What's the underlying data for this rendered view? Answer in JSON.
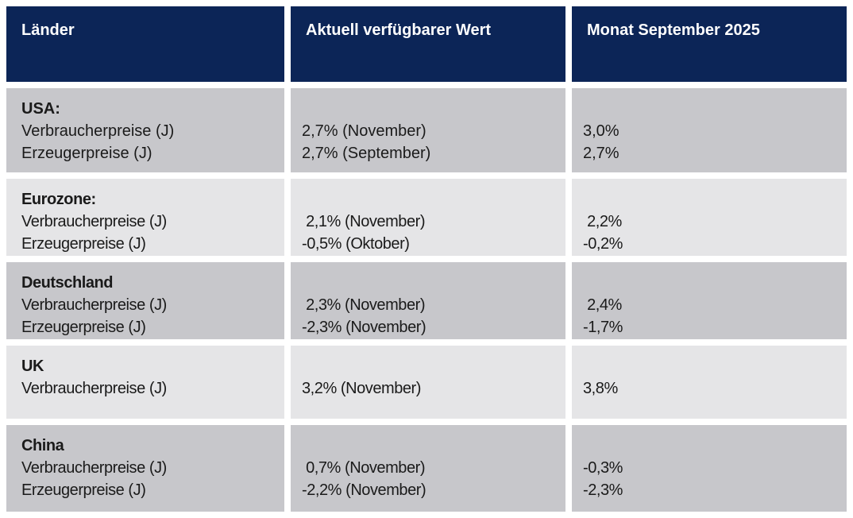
{
  "table": {
    "columns": [
      {
        "label": "Länder"
      },
      {
        "label": "Aktuell verfügbarer Wert"
      },
      {
        "label": "Monat September 2025"
      }
    ],
    "rows": [
      {
        "country": "USA:",
        "indicators": "Verbraucherpreise (J)\nErzeugerpreise (J)",
        "current_value": "2,7% (November)\n2,7% (September)",
        "september_value": "3,0%\n2,7%"
      },
      {
        "country": "Eurozone:",
        "indicators": "Verbraucherpreise (J)\nErzeugerpreise (J)",
        "current_value": " 2,1% (November)\n-0,5% (Oktober)",
        "september_value": " 2,2%\n-0,2%"
      },
      {
        "country": "Deutschland",
        "indicators": "Verbraucherpreise (J)\nErzeugerpreise (J)",
        "current_value": " 2,3% (November)\n-2,3% (November)",
        "september_value": " 2,4%\n-1,7%"
      },
      {
        "country": "UK",
        "indicators": "Verbraucherpreise (J)",
        "current_value": "3,2% (November)",
        "september_value": "3,8%"
      },
      {
        "country": "China",
        "indicators": "Verbraucherpreise (J)\nErzeugerpreise (J)",
        "current_value": " 0,7% (November)\n-2,2% (November)",
        "september_value": "-0,3%\n-2,3%"
      }
    ],
    "colors": {
      "header_bg": "#0c2557",
      "header_text": "#ffffff",
      "row_dark": "#c7c7cb",
      "row_light": "#e5e5e7",
      "body_text": "#1a1a1a",
      "gap": "#ffffff"
    }
  }
}
